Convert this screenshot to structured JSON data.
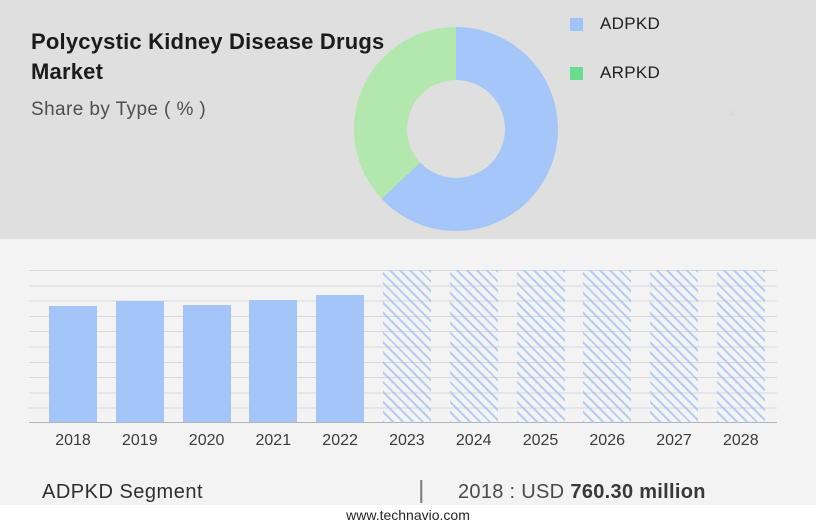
{
  "header": {
    "title_line1": "Polycystic Kidney Disease Drugs",
    "title_line2": "Market",
    "subtitle": "Share by Type ( % )"
  },
  "legend": {
    "items": [
      {
        "label": "ADPKD",
        "color": "#9ec4fa"
      },
      {
        "label": "ARPKD",
        "color": "#69dc8d"
      }
    ]
  },
  "chart_data": [
    {
      "type": "pie",
      "subtype": "donut",
      "title": "Polycystic Kidney Disease Drugs Market — Share by Type ( % )",
      "labels": [
        "ADPKD",
        "ARPKD"
      ],
      "values_pct": [
        63,
        37
      ],
      "colors": [
        "#a5c6f8",
        "#b2e7ae"
      ],
      "legend_position": "right"
    },
    {
      "type": "bar",
      "title": "ADPKD Segment",
      "categories": [
        "2018",
        "2019",
        "2020",
        "2021",
        "2022",
        "2023",
        "2024",
        "2025",
        "2026",
        "2027",
        "2028"
      ],
      "values": [
        760.3,
        793,
        763,
        795,
        832,
        null,
        null,
        null,
        null,
        null,
        null
      ],
      "unit": "USD million",
      "ylim": [
        0,
        1000
      ],
      "gridline_intervals": 10,
      "grid": "horizontal",
      "bar_color": "#a4c5f7",
      "hatch_color": "#9fc2f3",
      "forecast_categories": [
        "2023",
        "2024",
        "2025",
        "2026",
        "2027",
        "2028"
      ],
      "forecast_style": "hatched full-height placeholder (values not shown)"
    }
  ],
  "caption": {
    "segment_label": "ADPKD Segment",
    "separator": "|",
    "value_prefix": "2018 : USD",
    "value_bold": "760.30 million"
  },
  "footer": {
    "url": "www.technavio.com"
  },
  "colors": {
    "header_bg": "#dfdfdf",
    "panel_bg": "#f3f3f4",
    "footer_bg": "#ffffff",
    "gridline": "#d8d8db",
    "baseline": "#b4b4b7"
  }
}
